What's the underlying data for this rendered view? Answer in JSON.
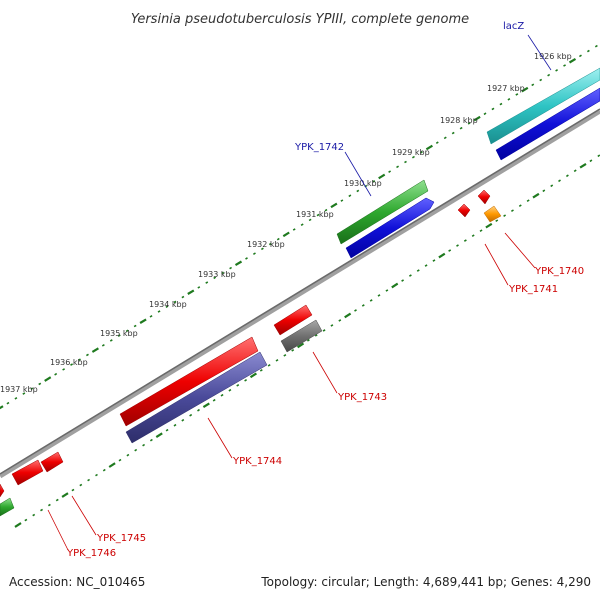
{
  "title": "Yersinia pseudotuberculosis YPIII, complete genome",
  "footer": {
    "accession": "Accession: NC_010465",
    "summary": "Topology: circular; Length: 4,689,441 bp; Genes: 4,290"
  },
  "scale_labels": [
    "1926 kbp",
    "1927 kbp",
    "1928 kbp",
    "1929 kbp",
    "1930 kbp",
    "1931 kbp",
    "1932 kbp",
    "1933 kbp",
    "1934 kbp",
    "1935 kbp",
    "1936 kbp",
    "1937 kbp"
  ],
  "gene_labels": [
    {
      "name": "lacZ",
      "color": "#1a1aa6"
    },
    {
      "name": "YPK_1742",
      "color": "#1a1aa6"
    },
    {
      "name": "YPK_1740",
      "color": "#cc0000"
    },
    {
      "name": "YPK_1741",
      "color": "#cc0000"
    },
    {
      "name": "YPK_1743",
      "color": "#cc0000"
    },
    {
      "name": "YPK_1744",
      "color": "#cc0000"
    },
    {
      "name": "YPK_1745",
      "color": "#cc0000"
    },
    {
      "name": "YPK_1746",
      "color": "#cc0000"
    }
  ],
  "feature_colors": {
    "backbone": "#808080",
    "cyan": "#2ec4c4",
    "blue": "#1010d8",
    "green": "#2ea82e",
    "red": "#ee0000",
    "gray": "#707070",
    "slate": "#4a4a9a",
    "orange": "#ff9900",
    "tick": "#1f7a1f"
  }
}
